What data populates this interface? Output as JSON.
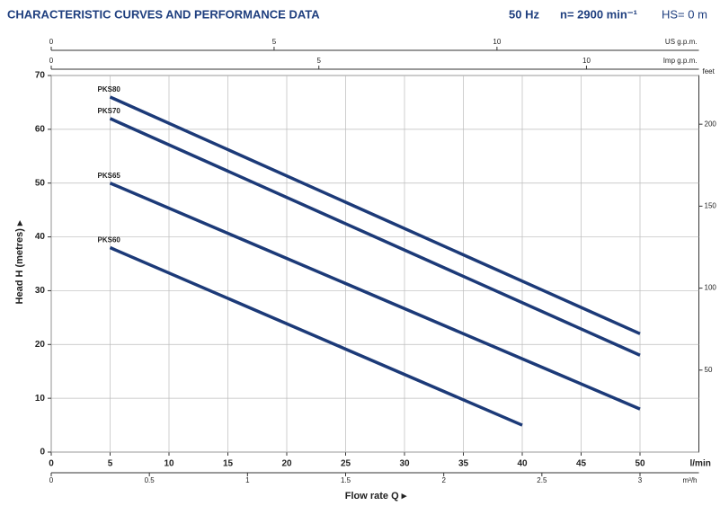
{
  "chart_data": {
    "type": "line",
    "title": "CHARACTERISTIC CURVES AND PERFORMANCE DATA",
    "annotations": [
      "50 Hz",
      "n= 2900 min⁻¹",
      "HS= 0 m"
    ],
    "xlabel": "Flow rate Q ▸",
    "ylabel": "Head H (metres) ▸",
    "xunit": "l/min",
    "xlim": [
      0,
      55
    ],
    "xticks": [
      0,
      5,
      10,
      15,
      20,
      25,
      30,
      35,
      40,
      45,
      50
    ],
    "ylim": [
      0,
      70
    ],
    "yticks": [
      0,
      10,
      20,
      30,
      40,
      50,
      60,
      70
    ],
    "y2unit": "feet",
    "y2lim": [
      0,
      229.7
    ],
    "y2ticks": [
      50,
      100,
      150,
      200
    ],
    "grid": true,
    "secondary_x": [
      {
        "position": "bottom",
        "unit": "m³/h",
        "lim": [
          0,
          3.3
        ],
        "ticks": [
          0,
          0.5,
          1,
          1.5,
          2,
          2.5,
          3
        ]
      },
      {
        "position": "top",
        "unit": "US g.p.m.",
        "lim": [
          0,
          14.53
        ],
        "ticks": [
          0,
          5,
          10
        ]
      },
      {
        "position": "top",
        "unit": "Imp g.p.m.",
        "lim": [
          0,
          12.1
        ],
        "ticks": [
          0,
          5,
          10
        ]
      }
    ],
    "series": [
      {
        "name": "PKS80",
        "color": "#1c3a78",
        "x": [
          5,
          50
        ],
        "values": [
          66,
          22
        ]
      },
      {
        "name": "PKS70",
        "color": "#1c3a78",
        "x": [
          5,
          50
        ],
        "values": [
          62,
          18
        ]
      },
      {
        "name": "PKS65",
        "color": "#1c3a78",
        "x": [
          5,
          50
        ],
        "values": [
          50,
          8
        ]
      },
      {
        "name": "PKS60",
        "color": "#1c3a78",
        "x": [
          5,
          40
        ],
        "values": [
          38,
          5
        ]
      }
    ]
  }
}
